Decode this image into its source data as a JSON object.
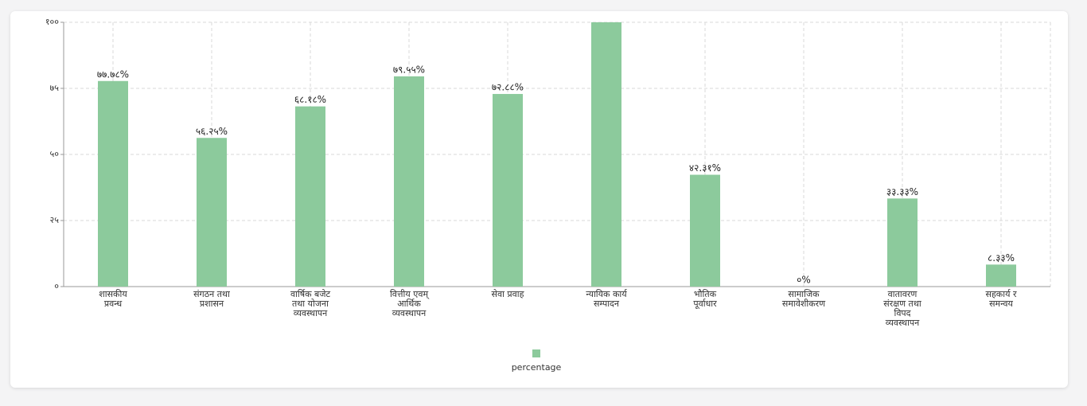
{
  "chart_data": {
    "type": "bar",
    "categories": [
      "शासकीय\nप्रवन्ध",
      "संगठन तथा\nप्रशासन",
      "वार्षिक बजेट\nतथा योजना\nव्यवस्थापन",
      "वित्तीय एवम्\nआर्थिक\nव्यवस्थापन",
      "सेवा प्रवाह",
      "न्यायिक कार्य\nसम्पादन",
      "भौतिक\nपूर्वाधार",
      "सामाजिक\nसमावेशीकरण",
      "वातावरण\nसंरक्षण तथा\nविपद\nव्यवस्थापन",
      "सहकार्य र\nसमन्वय"
    ],
    "series": [
      {
        "name": "percentage",
        "color": "#8cca9c",
        "values": [
          77.78,
          56.25,
          68.18,
          79.55,
          72.88,
          100,
          42.31,
          0,
          33.33,
          8.33
        ],
        "value_labels": [
          "७७.७८%",
          "५६.२५%",
          "६८.१८%",
          "७९.५५%",
          "७२.८८%",
          null,
          "४२.३१%",
          "०%",
          "३३.३३%",
          "८.३३%"
        ]
      }
    ],
    "ylim": [
      0,
      100
    ],
    "yticks": [
      {
        "value": 0,
        "label": "०"
      },
      {
        "value": 25,
        "label": "२५"
      },
      {
        "value": 50,
        "label": "५०"
      },
      {
        "value": 75,
        "label": "७५"
      },
      {
        "value": 100,
        "label": "१००"
      }
    ],
    "grid": true
  }
}
